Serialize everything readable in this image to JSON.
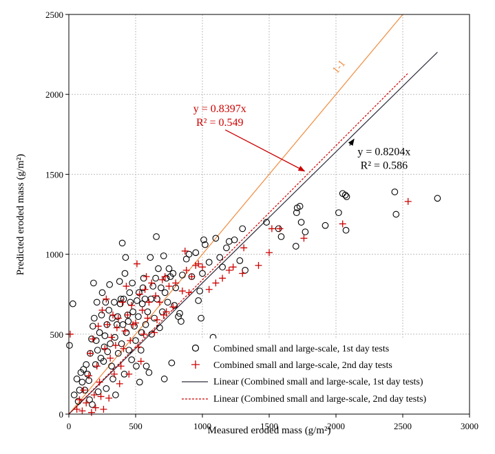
{
  "chart_data": {
    "type": "scatter",
    "xlabel": "Measured eroded mass (g/m²)",
    "ylabel": "Predicted eroded mass (g/m²)",
    "xlim": [
      0,
      3000
    ],
    "ylim": [
      0,
      2500
    ],
    "x_ticks": [
      "0",
      "500",
      "1000",
      "1500",
      "2000",
      "2500",
      "3000"
    ],
    "y_ticks": [
      "0",
      "500",
      "1000",
      "1500",
      "2000",
      "2500"
    ],
    "grid": true,
    "legend_position": "bottom-right",
    "series": [
      {
        "name": "Combined small and large-scale, 1st day tests",
        "marker": "circle",
        "color": "#000000",
        "points": [
          [
            5,
            430
          ],
          [
            30,
            690
          ],
          [
            40,
            120
          ],
          [
            60,
            220
          ],
          [
            70,
            80
          ],
          [
            80,
            150
          ],
          [
            90,
            260
          ],
          [
            100,
            200
          ],
          [
            110,
            280
          ],
          [
            120,
            150
          ],
          [
            130,
            310
          ],
          [
            140,
            250
          ],
          [
            150,
            210
          ],
          [
            155,
            90
          ],
          [
            160,
            380
          ],
          [
            170,
            470
          ],
          [
            175,
            60
          ],
          [
            180,
            550
          ],
          [
            185,
            820
          ],
          [
            190,
            600
          ],
          [
            200,
            310
          ],
          [
            205,
            460
          ],
          [
            210,
            700
          ],
          [
            215,
            400
          ],
          [
            220,
            140
          ],
          [
            230,
            510
          ],
          [
            240,
            350
          ],
          [
            245,
            620
          ],
          [
            250,
            760
          ],
          [
            260,
            330
          ],
          [
            265,
            420
          ],
          [
            270,
            490
          ],
          [
            275,
            700
          ],
          [
            280,
            160
          ],
          [
            285,
            560
          ],
          [
            290,
            390
          ],
          [
            300,
            650
          ],
          [
            305,
            810
          ],
          [
            310,
            440
          ],
          [
            320,
            300
          ],
          [
            325,
            600
          ],
          [
            330,
            220
          ],
          [
            340,
            700
          ],
          [
            345,
            480
          ],
          [
            350,
            120
          ],
          [
            360,
            560
          ],
          [
            365,
            610
          ],
          [
            370,
            380
          ],
          [
            380,
            830
          ],
          [
            385,
            690
          ],
          [
            390,
            720
          ],
          [
            395,
            440
          ],
          [
            400,
            1070
          ],
          [
            405,
            560
          ],
          [
            410,
            720
          ],
          [
            415,
            250
          ],
          [
            420,
            880
          ],
          [
            425,
            980
          ],
          [
            430,
            510
          ],
          [
            440,
            620
          ],
          [
            445,
            580
          ],
          [
            450,
            400
          ],
          [
            455,
            760
          ],
          [
            460,
            700
          ],
          [
            470,
            340
          ],
          [
            475,
            820
          ],
          [
            480,
            640
          ],
          [
            490,
            550
          ],
          [
            500,
            460
          ],
          [
            505,
            300
          ],
          [
            510,
            710
          ],
          [
            520,
            610
          ],
          [
            525,
            760
          ],
          [
            530,
            200
          ],
          [
            540,
            400
          ],
          [
            545,
            510
          ],
          [
            550,
            690
          ],
          [
            555,
            790
          ],
          [
            560,
            850
          ],
          [
            570,
            720
          ],
          [
            575,
            560
          ],
          [
            580,
            300
          ],
          [
            590,
            640
          ],
          [
            600,
            260
          ],
          [
            610,
            980
          ],
          [
            615,
            720
          ],
          [
            620,
            500
          ],
          [
            630,
            800
          ],
          [
            640,
            600
          ],
          [
            650,
            850
          ],
          [
            655,
            1110
          ],
          [
            660,
            720
          ],
          [
            670,
            910
          ],
          [
            680,
            540
          ],
          [
            690,
            790
          ],
          [
            700,
            640
          ],
          [
            710,
            990
          ],
          [
            715,
            220
          ],
          [
            720,
            760
          ],
          [
            730,
            850
          ],
          [
            740,
            700
          ],
          [
            750,
            910
          ],
          [
            760,
            860
          ],
          [
            770,
            320
          ],
          [
            780,
            880
          ],
          [
            790,
            680
          ],
          [
            800,
            790
          ],
          [
            820,
            610
          ],
          [
            830,
            630
          ],
          [
            840,
            580
          ],
          [
            850,
            870
          ],
          [
            880,
            970
          ],
          [
            900,
            1000
          ],
          [
            920,
            860
          ],
          [
            950,
            1010
          ],
          [
            970,
            710
          ],
          [
            980,
            770
          ],
          [
            990,
            600
          ],
          [
            1000,
            880
          ],
          [
            1010,
            1090
          ],
          [
            1020,
            1060
          ],
          [
            1050,
            950
          ],
          [
            1080,
            480
          ],
          [
            1100,
            1100
          ],
          [
            1130,
            980
          ],
          [
            1150,
            920
          ],
          [
            1180,
            1040
          ],
          [
            1200,
            1080
          ],
          [
            1240,
            1090
          ],
          [
            1280,
            960
          ],
          [
            1300,
            1160
          ],
          [
            1320,
            900
          ],
          [
            1480,
            1200
          ],
          [
            1570,
            1160
          ],
          [
            1590,
            1110
          ],
          [
            1700,
            1050
          ],
          [
            1705,
            1260
          ],
          [
            1710,
            1290
          ],
          [
            1730,
            1300
          ],
          [
            1740,
            1200
          ],
          [
            1770,
            1140
          ],
          [
            1920,
            1180
          ],
          [
            2020,
            1260
          ],
          [
            2050,
            1380
          ],
          [
            2070,
            1370
          ],
          [
            2075,
            1150
          ],
          [
            2080,
            1360
          ],
          [
            2440,
            1390
          ],
          [
            2450,
            1250
          ],
          [
            2760,
            1350
          ]
        ]
      },
      {
        "name": "Combined small and large-scale, 2nd day tests",
        "marker": "plus",
        "color": "#cc0000",
        "points": [
          [
            10,
            500
          ],
          [
            60,
            30
          ],
          [
            80,
            90
          ],
          [
            100,
            20
          ],
          [
            110,
            150
          ],
          [
            130,
            70
          ],
          [
            150,
            240
          ],
          [
            160,
            380
          ],
          [
            170,
            10
          ],
          [
            180,
            470
          ],
          [
            190,
            120
          ],
          [
            200,
            40
          ],
          [
            210,
            300
          ],
          [
            220,
            550
          ],
          [
            230,
            200
          ],
          [
            240,
            110
          ],
          [
            250,
            650
          ],
          [
            260,
            30
          ],
          [
            270,
            410
          ],
          [
            280,
            720
          ],
          [
            290,
            560
          ],
          [
            300,
            100
          ],
          [
            310,
            350
          ],
          [
            320,
            480
          ],
          [
            330,
            620
          ],
          [
            340,
            250
          ],
          [
            350,
            430
          ],
          [
            360,
            540
          ],
          [
            370,
            600
          ],
          [
            380,
            190
          ],
          [
            390,
            300
          ],
          [
            400,
            700
          ],
          [
            410,
            410
          ],
          [
            420,
            520
          ],
          [
            430,
            800
          ],
          [
            440,
            620
          ],
          [
            450,
            250
          ],
          [
            460,
            460
          ],
          [
            470,
            680
          ],
          [
            480,
            560
          ],
          [
            500,
            570
          ],
          [
            510,
            940
          ],
          [
            520,
            420
          ],
          [
            530,
            750
          ],
          [
            540,
            330
          ],
          [
            550,
            650
          ],
          [
            560,
            500
          ],
          [
            570,
            780
          ],
          [
            580,
            860
          ],
          [
            590,
            600
          ],
          [
            600,
            700
          ],
          [
            620,
            820
          ],
          [
            640,
            510
          ],
          [
            650,
            740
          ],
          [
            660,
            590
          ],
          [
            680,
            700
          ],
          [
            700,
            840
          ],
          [
            710,
            620
          ],
          [
            720,
            860
          ],
          [
            730,
            640
          ],
          [
            750,
            800
          ],
          [
            780,
            670
          ],
          [
            800,
            820
          ],
          [
            850,
            770
          ],
          [
            870,
            1020
          ],
          [
            880,
            900
          ],
          [
            900,
            760
          ],
          [
            920,
            860
          ],
          [
            950,
            930
          ],
          [
            970,
            940
          ],
          [
            1000,
            920
          ],
          [
            1050,
            780
          ],
          [
            1100,
            820
          ],
          [
            1150,
            850
          ],
          [
            1200,
            900
          ],
          [
            1230,
            920
          ],
          [
            1300,
            880
          ],
          [
            1310,
            1040
          ],
          [
            1420,
            930
          ],
          [
            1500,
            1010
          ],
          [
            1520,
            1160
          ],
          [
            1580,
            1160
          ],
          [
            1760,
            1100
          ],
          [
            2050,
            1190
          ],
          [
            2540,
            1330
          ]
        ]
      }
    ],
    "fits": [
      {
        "name": "Linear (Combined small and large-scale, 1st day tests)",
        "slope": 0.8204,
        "x_range": [
          0,
          2760
        ],
        "color": "#2b2b3a",
        "dash": false
      },
      {
        "name": "Linear (Combined small and large-scale, 2nd day tests)",
        "slope": 0.8397,
        "x_range": [
          0,
          2540
        ],
        "color": "#cc0000",
        "dash": true
      }
    ],
    "reference_line": {
      "label": "1-1",
      "slope": 1,
      "color": "#f08a3c"
    },
    "annotations": [
      {
        "line1": "y = 0.8397x",
        "line2": "R² = 0.549",
        "color": "#cc0000",
        "x": 1130,
        "y": 1890,
        "arrow_to": [
          1765,
          1520
        ]
      },
      {
        "line1": "y = 0.8204x",
        "line2": "R² = 0.586",
        "color": "#000000",
        "x": 2360,
        "y": 1620,
        "arrow_to": [
          2135,
          1720
        ]
      }
    ]
  }
}
